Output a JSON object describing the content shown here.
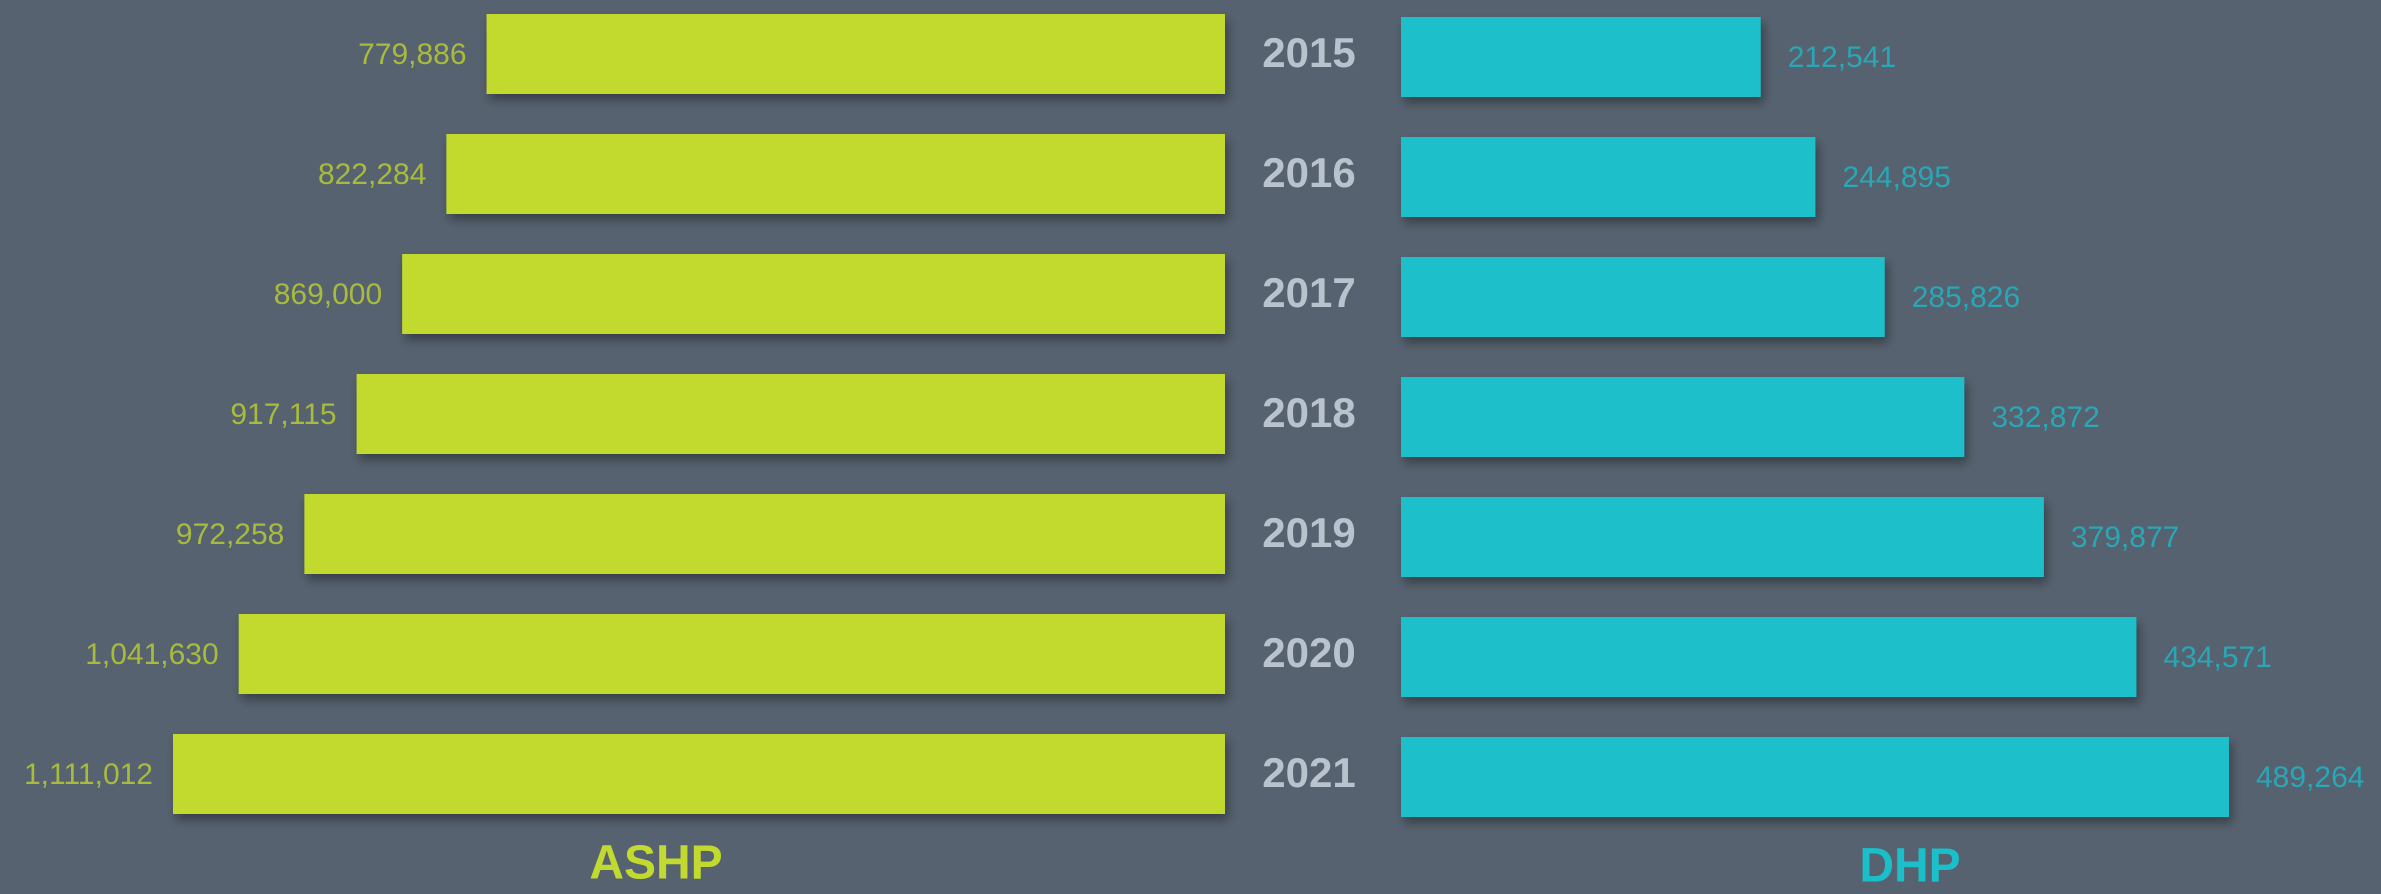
{
  "chart_data": {
    "type": "butterfly-bar",
    "categories": [
      "2015",
      "2016",
      "2017",
      "2018",
      "2019",
      "2020",
      "2021"
    ],
    "series": [
      {
        "name": "ASHP",
        "color": "#c2d92f",
        "label_color": "#a9bb3c",
        "values": [
          779886,
          822284,
          869000,
          917115,
          972258,
          1041630,
          1111012
        ],
        "value_labels": [
          "779,886",
          "822,284",
          "869,000",
          "917,115",
          "972,258",
          "1,041,630",
          "1,111,012"
        ]
      },
      {
        "name": "DHP",
        "color": "#1bbfca",
        "label_color": "#2aa7b6",
        "values": [
          212541,
          244895,
          285826,
          332872,
          379877,
          434571,
          489264
        ],
        "value_labels": [
          "212,541",
          "244,895",
          "285,826",
          "332,872",
          "379,877",
          "434,571",
          "489,264"
        ]
      }
    ]
  }
}
